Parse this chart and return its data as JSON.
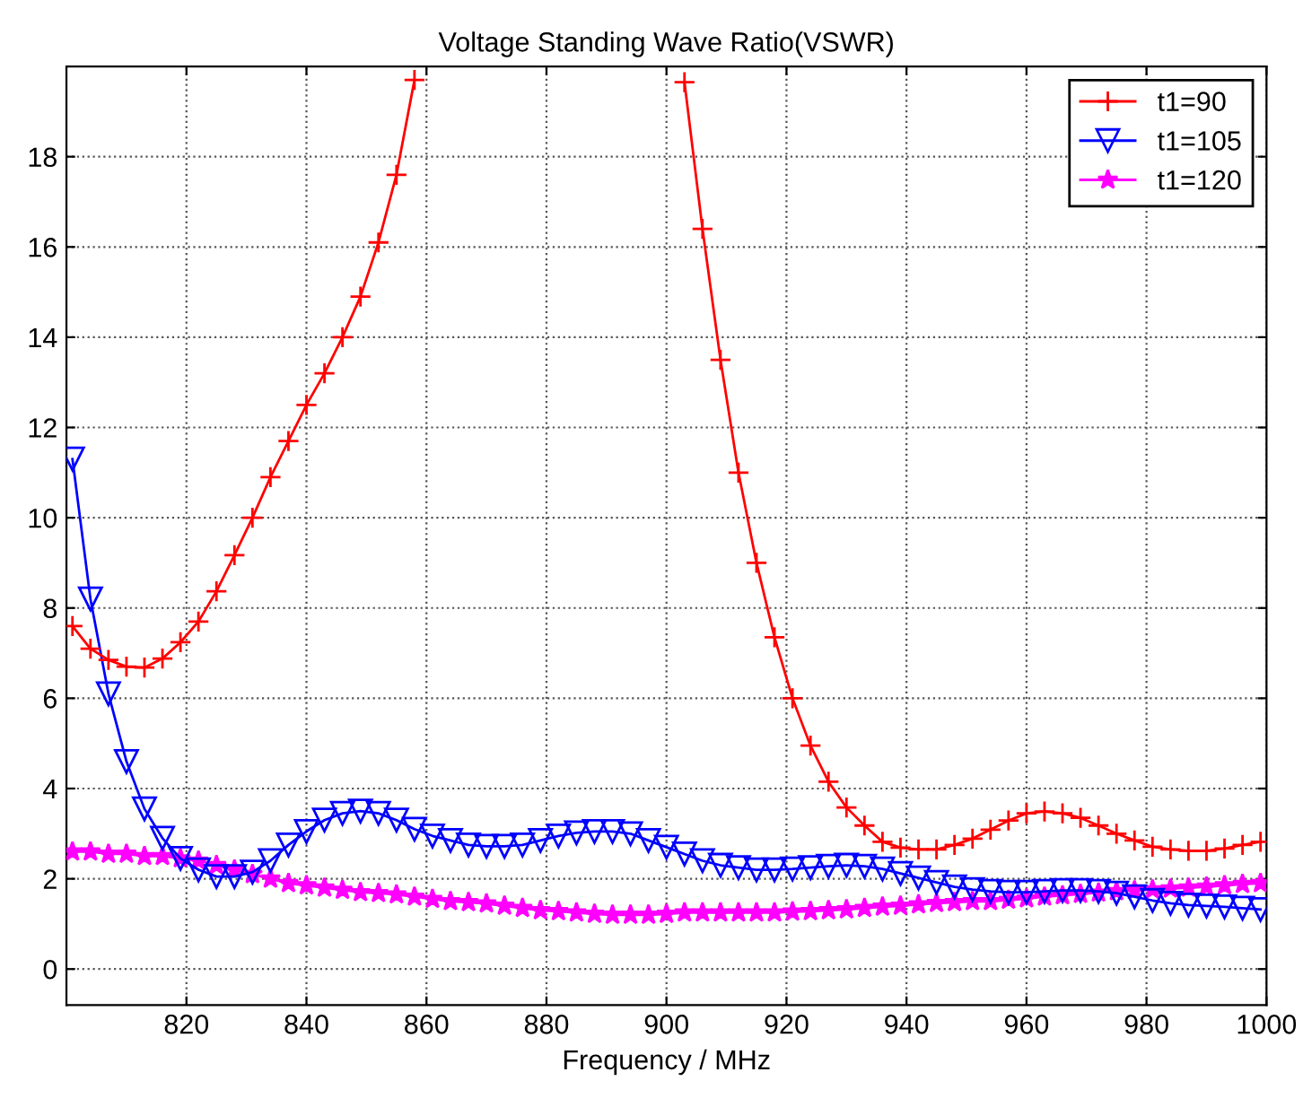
{
  "chart_data": {
    "type": "line",
    "title": "Voltage Standing Wave Ratio(VSWR)",
    "xlabel": "Frequency / MHz",
    "x": [
      801,
      804,
      807,
      810,
      813,
      816,
      819,
      822,
      825,
      828,
      831,
      834,
      837,
      840,
      843,
      846,
      849,
      852,
      855,
      858,
      861,
      864,
      867,
      870,
      873,
      876,
      879,
      882,
      885,
      888,
      891,
      894,
      897,
      900,
      903,
      906,
      909,
      912,
      915,
      918,
      921,
      924,
      927,
      930,
      933,
      936,
      939,
      942,
      945,
      948,
      951,
      954,
      957,
      960,
      963,
      966,
      969,
      972,
      975,
      978,
      981,
      984,
      987,
      990,
      993,
      996,
      999
    ],
    "series": [
      {
        "name": "t1=90",
        "color": "#ff0000",
        "marker": "cross",
        "values": [
          7.6,
          7.1,
          6.85,
          6.7,
          6.68,
          6.88,
          7.24,
          7.7,
          8.37,
          9.17,
          10.0,
          10.9,
          11.7,
          12.5,
          13.2,
          14.0,
          14.9,
          16.1,
          17.6,
          19.7,
          null,
          null,
          null,
          null,
          null,
          null,
          null,
          null,
          null,
          null,
          null,
          null,
          null,
          null,
          19.65,
          16.4,
          13.5,
          11.0,
          9.0,
          7.35,
          6.0,
          4.95,
          4.15,
          3.58,
          3.18,
          2.82,
          2.69,
          2.65,
          2.65,
          2.75,
          2.89,
          3.09,
          3.29,
          3.45,
          3.49,
          3.45,
          3.35,
          3.18,
          3.0,
          2.85,
          2.71,
          2.65,
          2.62,
          2.62,
          2.67,
          2.75,
          2.82
        ]
      },
      {
        "name": "t1=105",
        "color": "#0000ff",
        "marker": "triangle",
        "values": [
          11.3,
          8.2,
          6.1,
          4.6,
          3.55,
          2.9,
          2.45,
          2.2,
          2.05,
          2.05,
          2.15,
          2.4,
          2.75,
          3.05,
          3.3,
          3.45,
          3.5,
          3.45,
          3.3,
          3.1,
          2.95,
          2.85,
          2.75,
          2.72,
          2.72,
          2.75,
          2.85,
          2.95,
          3.02,
          3.05,
          3.05,
          3.0,
          2.85,
          2.7,
          2.55,
          2.4,
          2.3,
          2.25,
          2.2,
          2.2,
          2.22,
          2.25,
          2.28,
          2.3,
          2.28,
          2.22,
          2.12,
          2.02,
          1.92,
          1.82,
          1.76,
          1.72,
          1.7,
          1.7,
          1.72,
          1.74,
          1.74,
          1.72,
          1.68,
          1.6,
          1.52,
          1.46,
          1.42,
          1.4,
          1.38,
          1.35,
          1.32
        ]
      },
      {
        "name": "t1=120",
        "color": "#ff00ff",
        "marker": "star",
        "values": [
          2.6,
          2.6,
          2.55,
          2.55,
          2.5,
          2.5,
          2.45,
          2.4,
          2.3,
          2.2,
          2.1,
          2.0,
          1.9,
          1.85,
          1.8,
          1.75,
          1.7,
          1.68,
          1.65,
          1.6,
          1.55,
          1.5,
          1.48,
          1.45,
          1.4,
          1.35,
          1.3,
          1.28,
          1.25,
          1.22,
          1.2,
          1.2,
          1.2,
          1.22,
          1.25,
          1.25,
          1.25,
          1.25,
          1.25,
          1.25,
          1.27,
          1.28,
          1.3,
          1.32,
          1.35,
          1.38,
          1.4,
          1.43,
          1.46,
          1.48,
          1.5,
          1.5,
          1.53,
          1.56,
          1.6,
          1.63,
          1.66,
          1.69,
          1.72,
          1.74,
          1.76,
          1.78,
          1.8,
          1.82,
          1.85,
          1.88,
          1.9
        ]
      }
    ],
    "xlim": [
      800,
      1000
    ],
    "xticks": [
      820,
      840,
      860,
      880,
      900,
      920,
      940,
      960,
      980,
      1000
    ],
    "ylim": [
      -0.8,
      20
    ],
    "yticks": [
      0,
      2,
      4,
      6,
      8,
      10,
      12,
      14,
      16,
      18
    ],
    "grid": true,
    "legend": "top right",
    "line_style": "solid"
  }
}
